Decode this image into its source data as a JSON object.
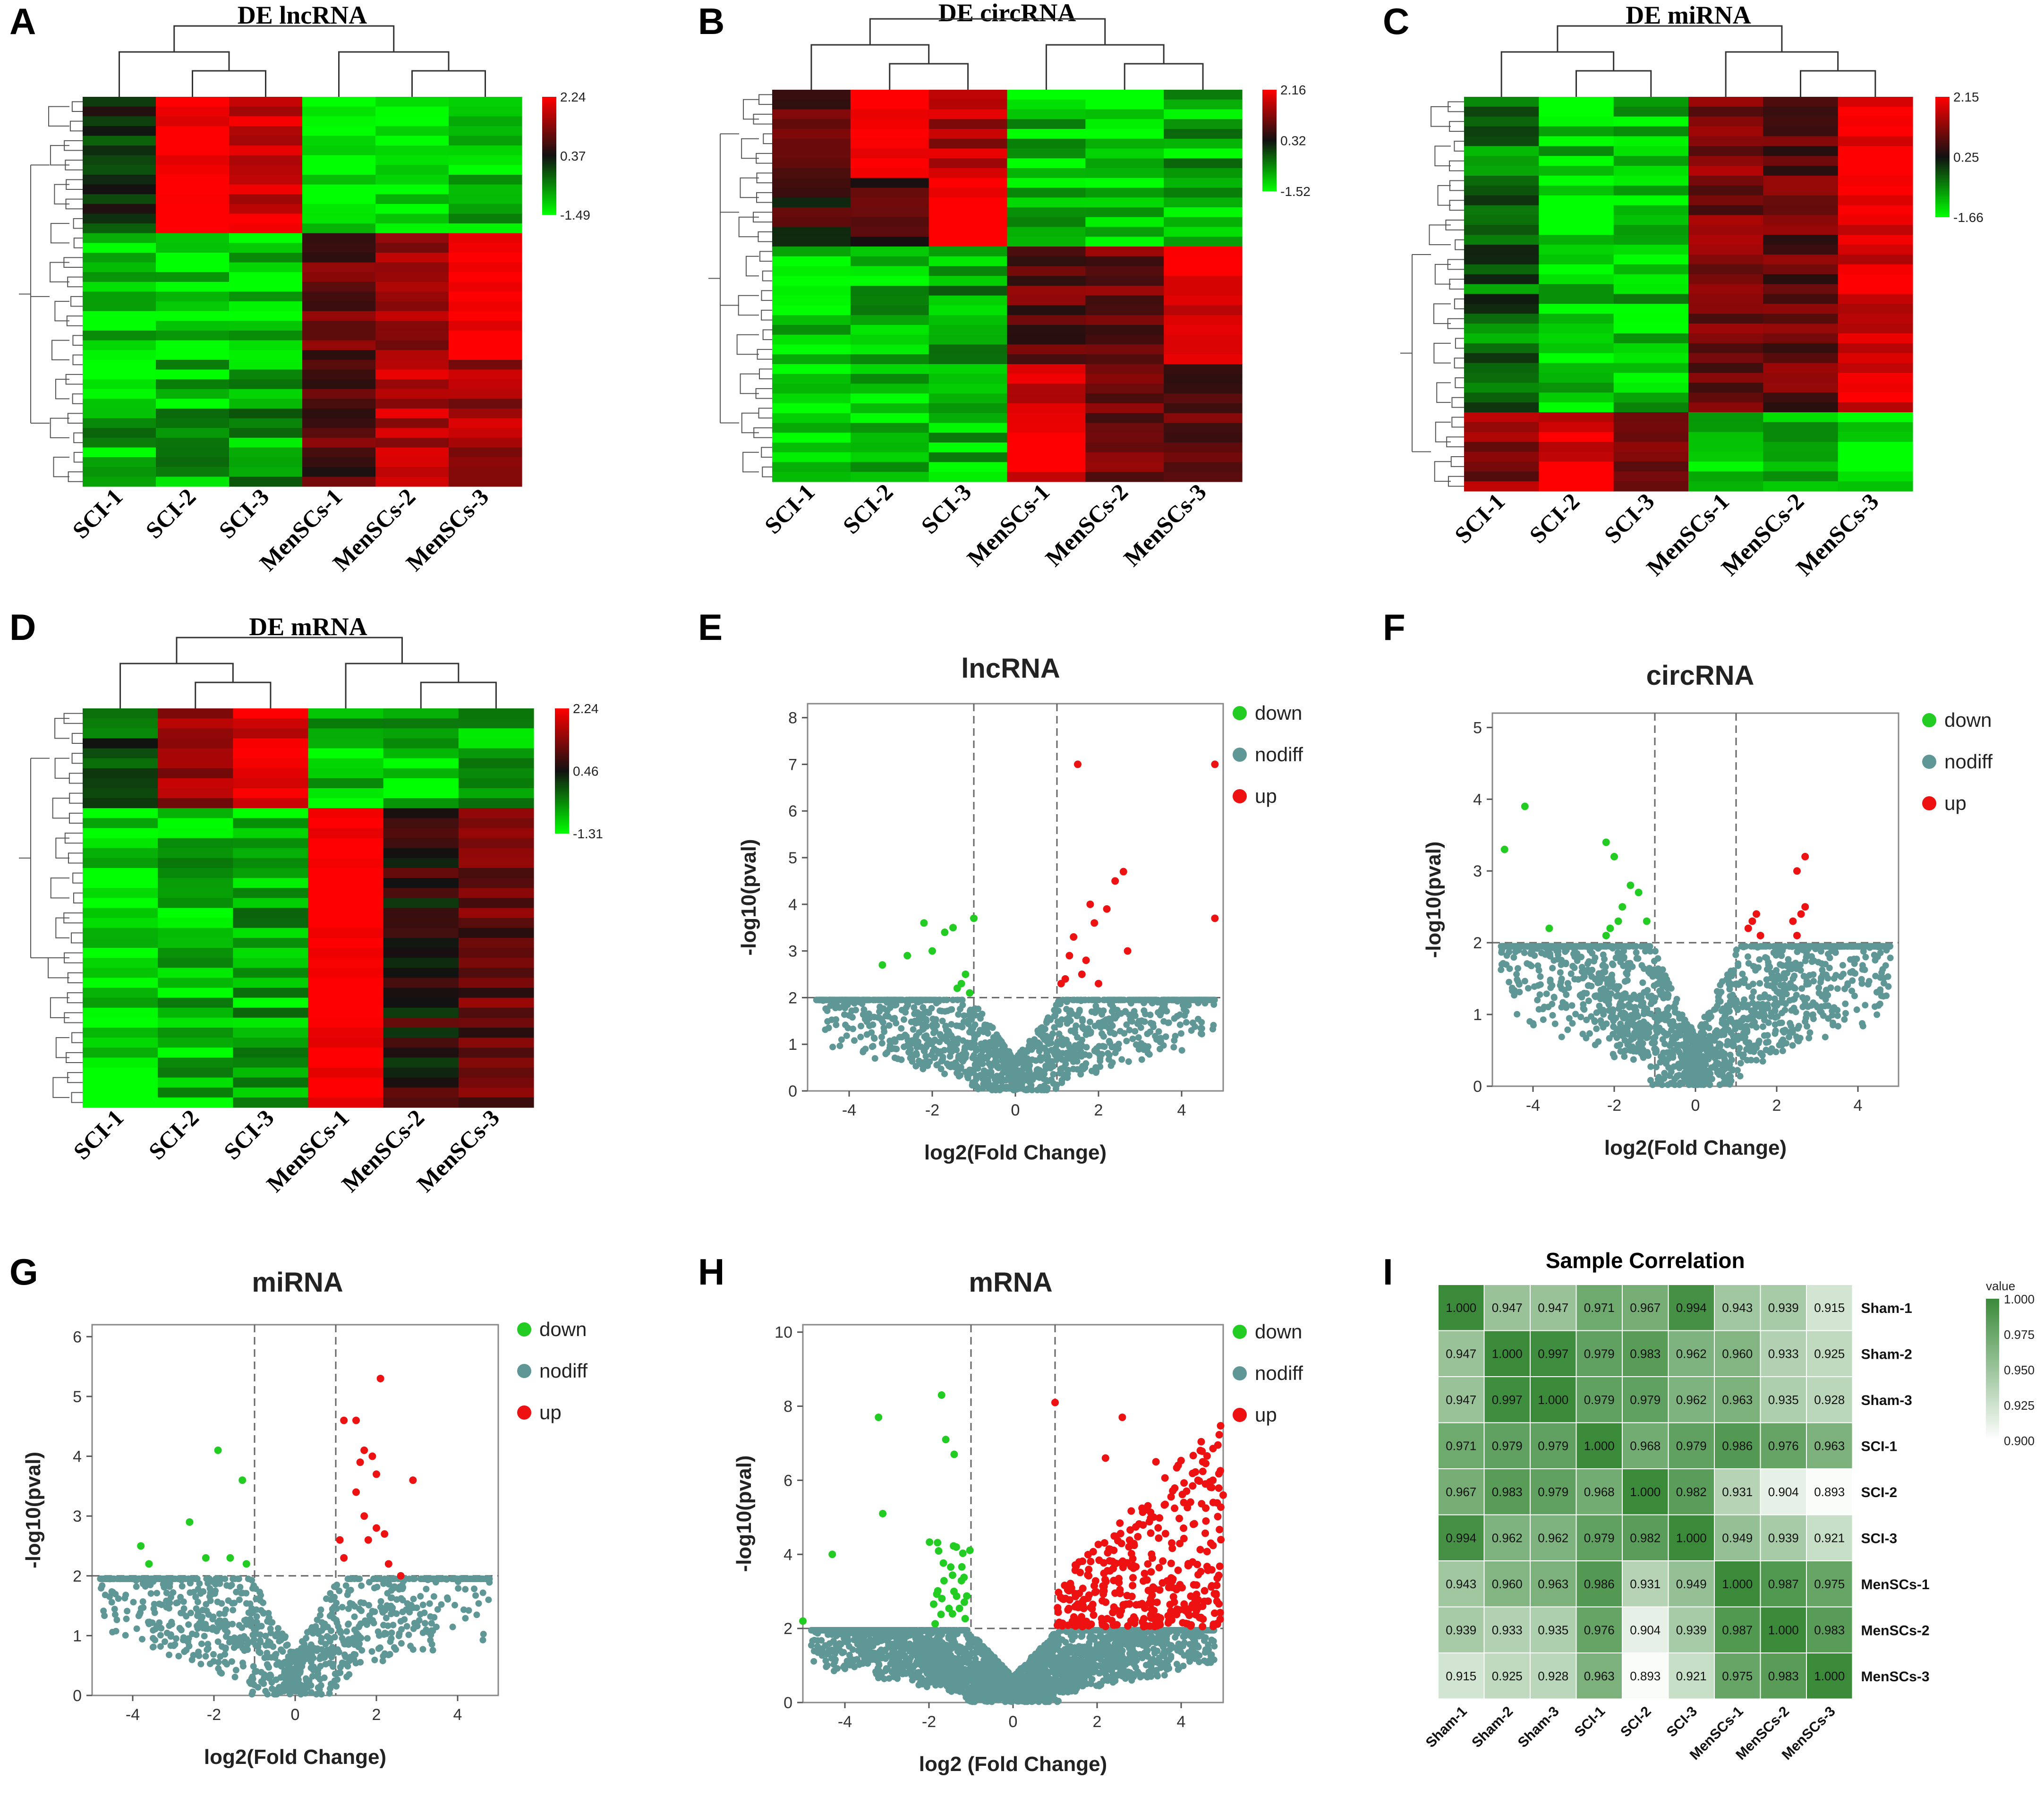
{
  "figure": {
    "heatmap_samples": [
      "SCI-1",
      "SCI-2",
      "SCI-3",
      "MenSCs-1",
      "MenSCs-2",
      "MenSCs-3"
    ],
    "volcano_legend": [
      "down",
      "nodiff",
      "up"
    ],
    "colors": {
      "heat_low": "#00ff00",
      "heat_mid": "#111111",
      "heat_high": "#ff0000",
      "down": "#22cc22",
      "nodiff": "#5f9796",
      "up": "#ee1111",
      "corr_high": "#3a8a3a",
      "corr_low": "#ffffff"
    }
  },
  "chart_data": [
    {
      "panel": "A",
      "type": "heatmap",
      "title": "DE lncRNA",
      "colorbar": {
        "max": "2.24",
        "mid": "0.37",
        "min": "-1.49"
      },
      "columns": [
        "SCI-1",
        "SCI-2",
        "SCI-3",
        "MenSCs-1",
        "MenSCs-2",
        "MenSCs-3"
      ],
      "row_count": 40,
      "blocks": [
        {
          "rows": 14,
          "values": [
            0.0,
            1.9,
            1.4,
            -1.2,
            -1.3,
            -0.9
          ]
        },
        {
          "rows": 13,
          "values": [
            -1.0,
            -1.1,
            -1.1,
            0.6,
            1.0,
            2.0
          ]
        },
        {
          "rows": 13,
          "values": [
            -0.9,
            -0.9,
            -0.8,
            0.5,
            1.2,
            1.1
          ]
        }
      ]
    },
    {
      "panel": "B",
      "type": "heatmap",
      "title": "DE circRNA",
      "colorbar": {
        "max": "2.16",
        "mid": "0.32",
        "min": "-1.52"
      },
      "columns": [
        "SCI-1",
        "SCI-2",
        "SCI-3",
        "MenSCs-1",
        "MenSCs-2",
        "MenSCs-3"
      ],
      "row_count": 40,
      "blocks": [
        {
          "rows": 9,
          "values": [
            0.5,
            1.9,
            1.2,
            -1.0,
            -1.2,
            -0.9
          ]
        },
        {
          "rows": 7,
          "values": [
            0.3,
            0.4,
            2.0,
            -0.9,
            -1.0,
            -1.0
          ]
        },
        {
          "rows": 12,
          "values": [
            -1.1,
            -0.9,
            -0.8,
            0.6,
            0.7,
            1.5
          ]
        },
        {
          "rows": 12,
          "values": [
            -1.2,
            -1.0,
            -1.0,
            1.6,
            0.8,
            0.5
          ]
        }
      ]
    },
    {
      "panel": "C",
      "type": "heatmap",
      "title": "DE miRNA",
      "colorbar": {
        "max": "2.15",
        "mid": "0.25",
        "min": "-1.66"
      },
      "columns": [
        "SCI-1",
        "SCI-2",
        "SCI-3",
        "MenSCs-1",
        "MenSCs-2",
        "MenSCs-3"
      ],
      "row_count": 40,
      "blocks": [
        {
          "rows": 32,
          "values": [
            -0.5,
            -1.1,
            -1.0,
            0.8,
            0.6,
            1.6
          ]
        },
        {
          "rows": 8,
          "values": [
            0.9,
            1.5,
            0.6,
            -1.0,
            -1.0,
            -1.3
          ]
        }
      ]
    },
    {
      "panel": "D",
      "type": "heatmap",
      "title": "DE mRNA",
      "colorbar": {
        "max": "2.24",
        "mid": "0.46",
        "min": "-1.31"
      },
      "columns": [
        "SCI-1",
        "SCI-2",
        "SCI-3",
        "MenSCs-1",
        "MenSCs-2",
        "MenSCs-3"
      ],
      "row_count": 40,
      "blocks": [
        {
          "rows": 10,
          "values": [
            -0.4,
            1.0,
            1.6,
            -1.0,
            -1.0,
            -0.9
          ]
        },
        {
          "rows": 30,
          "values": [
            -1.1,
            -1.0,
            -0.9,
            2.0,
            0.2,
            0.6
          ]
        }
      ]
    },
    {
      "panel": "E",
      "type": "scatter",
      "title": "lncRNA",
      "xlabel": "log2(Fold Change)",
      "ylabel": "-log10(pval)",
      "xlim": [
        -5,
        5
      ],
      "ylim": [
        0,
        8.3
      ],
      "xticks": [
        -4,
        -2,
        0,
        2,
        4
      ],
      "yticks": [
        0,
        1,
        2,
        3,
        4,
        5,
        6,
        7,
        8
      ],
      "thresholds": {
        "x": [
          -1,
          1
        ],
        "y": 2
      },
      "nodiff_count": 1400,
      "down": [
        [
          -3.2,
          2.7
        ],
        [
          -2.6,
          2.9
        ],
        [
          -2.2,
          3.6
        ],
        [
          -2.0,
          3.0
        ],
        [
          -1.7,
          3.4
        ],
        [
          -1.5,
          3.5
        ],
        [
          -1.3,
          2.3
        ],
        [
          -1.2,
          2.5
        ],
        [
          -1.1,
          2.1
        ],
        [
          -1.0,
          3.7
        ],
        [
          -1.4,
          2.2
        ]
      ],
      "up": [
        [
          1.5,
          7.0
        ],
        [
          4.8,
          7.0
        ],
        [
          2.6,
          4.7
        ],
        [
          2.4,
          4.5
        ],
        [
          2.2,
          3.9
        ],
        [
          1.8,
          4.0
        ],
        [
          2.7,
          3.0
        ],
        [
          1.4,
          3.3
        ],
        [
          1.9,
          3.6
        ],
        [
          1.2,
          2.4
        ],
        [
          1.3,
          2.9
        ],
        [
          1.6,
          2.5
        ],
        [
          2.0,
          2.3
        ],
        [
          4.8,
          3.7
        ],
        [
          1.1,
          2.3
        ],
        [
          1.7,
          2.8
        ]
      ]
    },
    {
      "panel": "F",
      "type": "scatter",
      "title": "circRNA",
      "xlabel": "log2(Fold Change)",
      "ylabel": "-log10(pval)",
      "xlim": [
        -5,
        5
      ],
      "ylim": [
        0,
        5.2
      ],
      "xticks": [
        -4,
        -2,
        0,
        2,
        4
      ],
      "yticks": [
        0,
        1,
        2,
        3,
        4,
        5
      ],
      "thresholds": {
        "x": [
          -1,
          1
        ],
        "y": 2
      },
      "nodiff_count": 1800,
      "down": [
        [
          -4.7,
          3.3
        ],
        [
          -4.2,
          3.9
        ],
        [
          -3.6,
          2.2
        ],
        [
          -2.2,
          3.4
        ],
        [
          -2.0,
          3.2
        ],
        [
          -1.9,
          2.3
        ],
        [
          -1.8,
          2.5
        ],
        [
          -1.6,
          2.8
        ],
        [
          -1.4,
          2.7
        ],
        [
          -2.2,
          2.1
        ],
        [
          -2.1,
          2.2
        ],
        [
          -1.2,
          2.3
        ]
      ],
      "up": [
        [
          2.5,
          3.0
        ],
        [
          2.7,
          3.2
        ],
        [
          2.6,
          2.4
        ],
        [
          2.7,
          2.5
        ],
        [
          1.4,
          2.3
        ],
        [
          1.5,
          2.4
        ],
        [
          1.6,
          2.1
        ],
        [
          1.3,
          2.2
        ],
        [
          2.4,
          2.3
        ],
        [
          2.5,
          2.1
        ]
      ]
    },
    {
      "panel": "G",
      "type": "scatter",
      "title": "miRNA",
      "xlabel": "log2(Fold Change)",
      "ylabel": "-log10(pval)",
      "xlim": [
        -5,
        5
      ],
      "ylim": [
        0,
        6.2
      ],
      "xticks": [
        -4,
        -2,
        0,
        2,
        4
      ],
      "yticks": [
        0,
        1,
        2,
        3,
        4,
        5,
        6
      ],
      "thresholds": {
        "x": [
          -1,
          1
        ],
        "y": 2
      },
      "nodiff_count": 1100,
      "down": [
        [
          -3.8,
          2.5
        ],
        [
          -3.6,
          2.2
        ],
        [
          -2.6,
          2.9
        ],
        [
          -2.2,
          2.3
        ],
        [
          -1.9,
          4.1
        ],
        [
          -1.6,
          2.3
        ],
        [
          -1.3,
          3.6
        ],
        [
          -1.2,
          2.2
        ]
      ],
      "up": [
        [
          2.1,
          5.3
        ],
        [
          1.2,
          4.6
        ],
        [
          1.5,
          4.6
        ],
        [
          1.7,
          4.1
        ],
        [
          1.9,
          4.0
        ],
        [
          1.6,
          3.9
        ],
        [
          2.0,
          3.7
        ],
        [
          2.9,
          3.6
        ],
        [
          1.5,
          3.4
        ],
        [
          1.7,
          3.0
        ],
        [
          2.0,
          2.8
        ],
        [
          1.8,
          2.6
        ],
        [
          2.2,
          2.7
        ],
        [
          1.1,
          2.6
        ],
        [
          1.2,
          2.3
        ],
        [
          2.3,
          2.2
        ],
        [
          2.6,
          2.0
        ]
      ]
    },
    {
      "panel": "H",
      "type": "scatter",
      "title": "mRNA",
      "xlabel": "log2  (Fold Change)",
      "ylabel": "-log10(pval)",
      "xlim": [
        -5,
        5
      ],
      "ylim": [
        0,
        10.2
      ],
      "xticks": [
        -4,
        -2,
        0,
        2,
        4
      ],
      "yticks": [
        0,
        2,
        4,
        6,
        8,
        10
      ],
      "thresholds": {
        "x": [
          -1,
          1
        ],
        "y": 2
      },
      "nodiff_count": 3200,
      "down_count": 35,
      "up_count": 380,
      "down_notable": [
        [
          -3.2,
          7.7
        ],
        [
          -1.7,
          8.3
        ],
        [
          -4.3,
          4.0
        ],
        [
          -3.1,
          5.1
        ],
        [
          -1.6,
          7.1
        ],
        [
          -1.4,
          6.7
        ],
        [
          -5.0,
          2.2
        ]
      ],
      "up_notable": [
        [
          1.0,
          8.1
        ],
        [
          2.6,
          7.7
        ],
        [
          3.4,
          6.5
        ],
        [
          4.4,
          6.0
        ],
        [
          5.0,
          5.6
        ],
        [
          2.2,
          6.6
        ]
      ]
    },
    {
      "panel": "I",
      "type": "heatmap",
      "title": "Sample Correlation",
      "labels": [
        "Sham-1",
        "Sham-2",
        "Sham-3",
        "SCI-1",
        "SCI-2",
        "SCI-3",
        "MenSCs-1",
        "MenSCs-2",
        "MenSCs-3"
      ],
      "legend_title": "value",
      "legend_ticks": [
        "1.000",
        "0.975",
        "0.950",
        "0.925",
        "0.900"
      ],
      "values": [
        [
          "1.000",
          "0.947",
          "0.947",
          "0.971",
          "0.967",
          "0.994",
          "0.943",
          "0.939",
          "0.915"
        ],
        [
          "0.947",
          "1.000",
          "0.997",
          "0.979",
          "0.983",
          "0.962",
          "0.960",
          "0.933",
          "0.925"
        ],
        [
          "0.947",
          "0.997",
          "1.000",
          "0.979",
          "0.979",
          "0.962",
          "0.963",
          "0.935",
          "0.928"
        ],
        [
          "0.971",
          "0.979",
          "0.979",
          "1.000",
          "0.968",
          "0.979",
          "0.986",
          "0.976",
          "0.963"
        ],
        [
          "0.967",
          "0.983",
          "0.979",
          "0.968",
          "1.000",
          "0.982",
          "0.931",
          "0.904",
          "0.893"
        ],
        [
          "0.994",
          "0.962",
          "0.962",
          "0.979",
          "0.982",
          "1.000",
          "0.949",
          "0.939",
          "0.921"
        ],
        [
          "0.943",
          "0.960",
          "0.963",
          "0.986",
          "0.931",
          "0.949",
          "1.000",
          "0.987",
          "0.975"
        ],
        [
          "0.939",
          "0.933",
          "0.935",
          "0.976",
          "0.904",
          "0.939",
          "0.987",
          "1.000",
          "0.983"
        ],
        [
          "0.915",
          "0.925",
          "0.928",
          "0.963",
          "0.893",
          "0.921",
          "0.975",
          "0.983",
          "1.000"
        ]
      ]
    }
  ]
}
